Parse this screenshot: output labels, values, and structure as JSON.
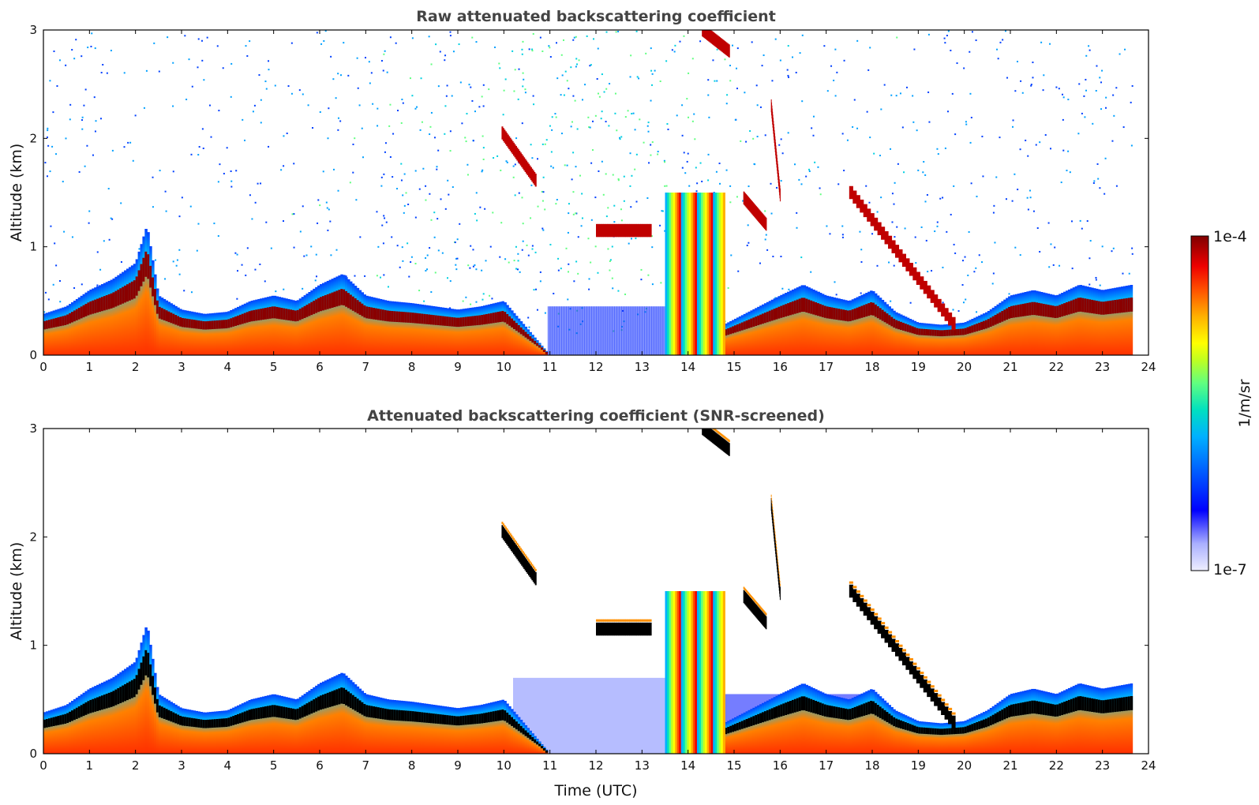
{
  "chart_data": [
    {
      "type": "heatmap",
      "title": "Raw attenuated backscattering coefficient",
      "xlabel": "",
      "ylabel": "Altitude (km)",
      "xlim": [
        0,
        24
      ],
      "ylim": [
        0,
        3
      ],
      "xticks": [
        "0",
        "1",
        "2",
        "3",
        "4",
        "5",
        "6",
        "7",
        "8",
        "9",
        "10",
        "11",
        "12",
        "13",
        "14",
        "15",
        "16",
        "17",
        "18",
        "19",
        "20",
        "21",
        "22",
        "23",
        "24"
      ],
      "yticks": [
        "0",
        "1",
        "2",
        "3"
      ],
      "boundary_layer_top_km": [
        [
          0,
          0.38
        ],
        [
          0.5,
          0.45
        ],
        [
          1,
          0.6
        ],
        [
          1.5,
          0.7
        ],
        [
          2,
          0.85
        ],
        [
          2.25,
          1.2
        ],
        [
          2.5,
          0.55
        ],
        [
          3,
          0.42
        ],
        [
          3.5,
          0.38
        ],
        [
          4,
          0.4
        ],
        [
          4.5,
          0.5
        ],
        [
          5,
          0.55
        ],
        [
          5.5,
          0.5
        ],
        [
          6,
          0.65
        ],
        [
          6.5,
          0.75
        ],
        [
          7,
          0.55
        ],
        [
          7.5,
          0.5
        ],
        [
          8,
          0.48
        ],
        [
          8.5,
          0.45
        ],
        [
          9,
          0.42
        ],
        [
          9.5,
          0.45
        ],
        [
          10,
          0.5
        ],
        [
          10.2,
          0.4
        ],
        [
          11,
          0.0
        ],
        [
          12,
          0.0
        ],
        [
          13,
          0.0
        ],
        [
          13.5,
          0.0
        ],
        [
          16,
          0.55
        ],
        [
          16.5,
          0.65
        ],
        [
          17,
          0.55
        ],
        [
          17.5,
          0.5
        ],
        [
          18,
          0.6
        ],
        [
          18.5,
          0.4
        ],
        [
          19,
          0.3
        ],
        [
          19.5,
          0.28
        ],
        [
          20,
          0.3
        ],
        [
          20.5,
          0.4
        ],
        [
          21,
          0.55
        ],
        [
          21.5,
          0.6
        ],
        [
          22,
          0.55
        ],
        [
          22.5,
          0.65
        ],
        [
          23,
          0.6
        ],
        [
          23.65,
          0.65
        ]
      ],
      "cloud_layers": [
        {
          "t_start": 9.95,
          "t_end": 10.7,
          "alt_start_km": 2.05,
          "alt_end_km": 1.6
        },
        {
          "t_start": 12.0,
          "t_end": 13.2,
          "alt_start_km": 1.15,
          "alt_end_km": 1.15
        },
        {
          "t_start": 13.5,
          "t_end": 14.8,
          "alt_start_km": 1.5,
          "alt_end_km": 0.0
        },
        {
          "t_start": 14.3,
          "t_end": 14.9,
          "alt_start_km": 3.0,
          "alt_end_km": 2.8
        },
        {
          "t_start": 15.2,
          "t_end": 15.7,
          "alt_start_km": 1.45,
          "alt_end_km": 1.2
        },
        {
          "t_start": 15.8,
          "t_end": 16.0,
          "alt_start_km": 2.3,
          "alt_end_km": 1.45
        },
        {
          "t_start": 17.5,
          "t_end": 19.8,
          "alt_start_km": 1.5,
          "alt_end_km": 0.25
        }
      ]
    },
    {
      "type": "heatmap",
      "title": "Attenuated backscattering coefficient (SNR-screened)",
      "xlabel": "Time (UTC)",
      "ylabel": "Altitude (km)",
      "xlim": [
        0,
        24
      ],
      "ylim": [
        0,
        3
      ],
      "xticks": [
        "0",
        "1",
        "2",
        "3",
        "4",
        "5",
        "6",
        "7",
        "8",
        "9",
        "10",
        "11",
        "12",
        "13",
        "14",
        "15",
        "16",
        "17",
        "18",
        "19",
        "20",
        "21",
        "22",
        "23",
        "24"
      ],
      "yticks": [
        "0",
        "1",
        "2",
        "3"
      ]
    }
  ],
  "colorbar": {
    "label": "1/m/sr",
    "top_label": "1e-4",
    "bottom_label": "1e-7",
    "range": [
      1e-07,
      0.0001
    ],
    "colors": [
      "#eeeeff",
      "#aab0ff",
      "#0000ff",
      "#0060ff",
      "#00b0ff",
      "#00e0c0",
      "#60ff80",
      "#c0ff20",
      "#ffff00",
      "#ffb000",
      "#ff5000",
      "#ee0000",
      "#b00000",
      "#800000"
    ]
  },
  "style": {
    "frame": "#000000",
    "title_color": "#444444"
  }
}
